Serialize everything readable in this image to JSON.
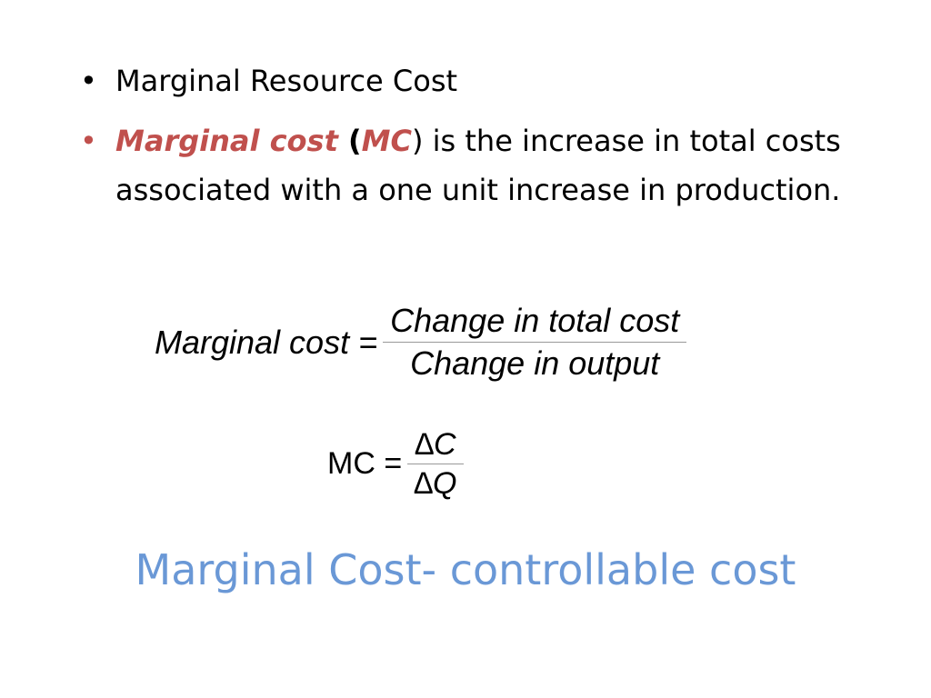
{
  "bullets": [
    {
      "parts": [
        "Marginal Resource Cost"
      ]
    },
    {
      "parts": [
        "Marginal cost",
        " (",
        "MC",
        ") is the increase in total costs associated with a one unit increase in production."
      ]
    }
  ],
  "formula_1": {
    "lhs": "Marginal cost =",
    "numerator": "Change in total cost",
    "denominator": "Change in output"
  },
  "formula_2": {
    "lhs": "MC =",
    "numerator": "∆C",
    "denominator": "∆Q"
  },
  "footer": {
    "title": "Marginal Cost- controllable cost"
  }
}
